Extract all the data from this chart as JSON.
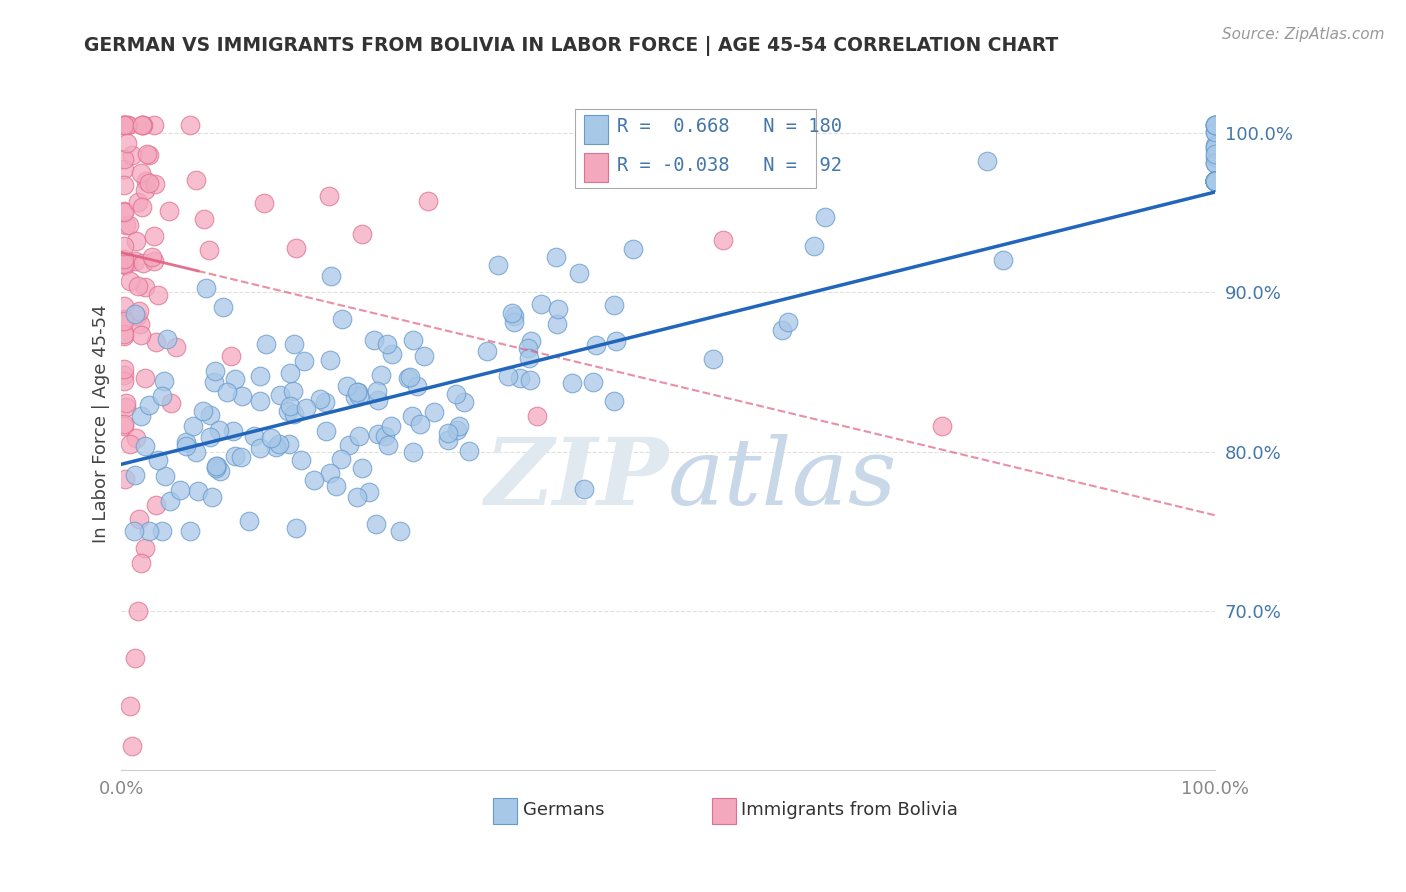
{
  "title": "GERMAN VS IMMIGRANTS FROM BOLIVIA IN LABOR FORCE | AGE 45-54 CORRELATION CHART",
  "source": "Source: ZipAtlas.com",
  "ylabel": "In Labor Force | Age 45-54",
  "legend_blue_r": "0.668",
  "legend_blue_n": "180",
  "legend_pink_r": "-0.038",
  "legend_pink_n": "92",
  "blue_color": "#a8c8e8",
  "blue_edge_color": "#6699cc",
  "pink_color": "#f4a8be",
  "pink_edge_color": "#e07090",
  "blue_line_color": "#2266bb",
  "pink_line_color": "#e06080",
  "watermark_color": "#e0e8f0",
  "ytick_color": "#4477aa",
  "xtick_color": "#888888",
  "title_color": "#333333",
  "ylabel_color": "#444444",
  "source_color": "#999999",
  "grid_color": "#e0e0e0",
  "xlim": [
    0.0,
    1.0
  ],
  "ylim": [
    0.6,
    1.035
  ],
  "yticks": [
    0.7,
    0.8,
    0.9,
    1.0
  ],
  "ytick_labels": [
    "70.0%",
    "80.0%",
    "90.0%",
    "100.0%"
  ],
  "blue_line_x0": 0.0,
  "blue_line_y0": 0.792,
  "blue_line_x1": 1.0,
  "blue_line_y1": 0.963,
  "pink_line_x0": 0.0,
  "pink_line_y0": 0.925,
  "pink_line_x1": 1.0,
  "pink_line_y1": 0.76
}
